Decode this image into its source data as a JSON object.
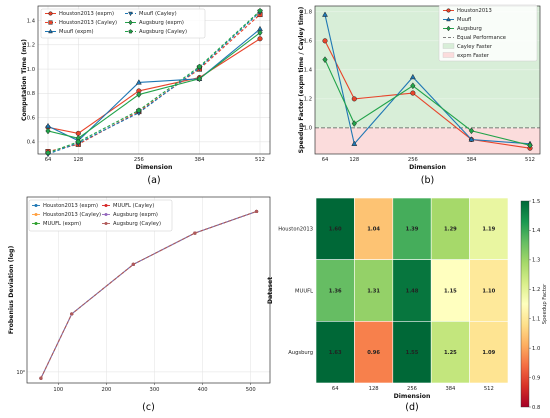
{
  "chart_data": [
    {
      "type": "line",
      "caption": "(a)",
      "x": [
        64,
        128,
        256,
        384,
        512
      ],
      "xlabel": "Dimension",
      "ylabel": "Computation Time (ms)",
      "ylim": [
        0.3,
        1.52
      ],
      "yticks": [
        0.4,
        0.6,
        0.8,
        1.0,
        1.2,
        1.4
      ],
      "grid": true,
      "legend": "top-left",
      "series": [
        {
          "name": "Houston2013 (expm)",
          "color": "#e8442b",
          "marker": "circle",
          "dash": false,
          "values": [
            0.52,
            0.47,
            0.82,
            0.93,
            1.25
          ]
        },
        {
          "name": "Houston2013 (Cayley)",
          "color": "#e8442b",
          "marker": "square",
          "dash": true,
          "values": [
            0.32,
            0.38,
            0.65,
            1.0,
            1.45
          ]
        },
        {
          "name": "Muufl (expm)",
          "color": "#1f77b4",
          "marker": "triangle",
          "dash": false,
          "values": [
            0.53,
            0.41,
            0.89,
            0.92,
            1.33
          ]
        },
        {
          "name": "Muufl (Cayley)",
          "color": "#1f77b4",
          "marker": "tri-down",
          "dash": true,
          "values": [
            0.3,
            0.39,
            0.64,
            1.01,
            1.47
          ]
        },
        {
          "name": "Augsburg (expm)",
          "color": "#22a34a",
          "marker": "diamond",
          "dash": false,
          "values": [
            0.49,
            0.43,
            0.79,
            0.92,
            1.3
          ]
        },
        {
          "name": "Augsburg (Cayley)",
          "color": "#22a34a",
          "marker": "pentagon",
          "dash": true,
          "values": [
            0.31,
            0.4,
            0.66,
            1.02,
            1.48
          ]
        }
      ]
    },
    {
      "type": "line",
      "caption": "(b)",
      "x": [
        64,
        128,
        256,
        384,
        512
      ],
      "xlabel": "Dimension",
      "ylabel": "Speedup Factor (expm time / Cayley time)",
      "ylim": [
        0.82,
        1.84
      ],
      "yticks": [
        1.0,
        1.2,
        1.4,
        1.6,
        1.8
      ],
      "grid": true,
      "legend": "top-right",
      "reference_line": {
        "y": 1.0,
        "name": "Equal Performance"
      },
      "regions": [
        {
          "name": "Cayley Faster",
          "color": "#d8eed8"
        },
        {
          "name": "expm Faster",
          "color": "#fbdcdc"
        }
      ],
      "series": [
        {
          "name": "Houston2013",
          "color": "#e8442b",
          "marker": "circle",
          "values": [
            1.6,
            1.2,
            1.24,
            0.92,
            0.86
          ]
        },
        {
          "name": "Muufl",
          "color": "#1f77b4",
          "marker": "triangle",
          "values": [
            1.78,
            0.89,
            1.35,
            0.92,
            0.89
          ]
        },
        {
          "name": "Augsburg",
          "color": "#22a34a",
          "marker": "diamond",
          "values": [
            1.47,
            1.03,
            1.29,
            0.98,
            0.88
          ]
        }
      ]
    },
    {
      "type": "line",
      "caption": "(c)",
      "x": [
        64,
        128,
        256,
        384,
        512
      ],
      "xlabel": "",
      "ylabel": "Frobenius Deviation (log)",
      "xlim": [
        35,
        540
      ],
      "xticks": [
        100,
        200,
        300,
        400,
        500
      ],
      "ylog": true,
      "ylim": [
        0.88,
        7.5
      ],
      "yticks": [
        {
          "value": 1.0,
          "label": "10⁰"
        }
      ],
      "grid": true,
      "legend": "top-left",
      "series": [
        {
          "name": "Houston2013 (expm)",
          "color": "#1f77b4",
          "values": [
            0.93,
            1.95,
            3.45,
            4.95,
            6.35
          ]
        },
        {
          "name": "Houston2013 (Cayley)",
          "color": "#ff9f40",
          "values": [
            0.93,
            1.95,
            3.45,
            4.95,
            6.35
          ]
        },
        {
          "name": "MUUFL (expm)",
          "color": "#2ca02c",
          "values": [
            0.93,
            1.95,
            3.45,
            4.95,
            6.35
          ]
        },
        {
          "name": "MUUFL (Cayley)",
          "color": "#d62728",
          "values": [
            0.93,
            1.95,
            3.45,
            4.95,
            6.35
          ]
        },
        {
          "name": "Augsburg (expm)",
          "color": "#9467bd",
          "values": [
            0.93,
            1.95,
            3.45,
            4.95,
            6.35
          ]
        },
        {
          "name": "Augsburg (Cayley)",
          "color": "#b05a5a",
          "values": [
            0.93,
            1.95,
            3.45,
            4.95,
            6.35
          ]
        }
      ]
    },
    {
      "type": "heatmap",
      "caption": "(d)",
      "xlabel": "Dimension",
      "ylabel": "Dataset",
      "colorbar_label": "Speedup Factor",
      "colorbar_range": [
        0.8,
        1.5
      ],
      "colorbar_ticks": [
        0.8,
        0.9,
        1.0,
        1.1,
        1.2,
        1.3,
        1.4,
        1.5
      ],
      "colorscale": [
        "#a50026",
        "#d73027",
        "#f46d43",
        "#fdae61",
        "#fee08b",
        "#ffffbf",
        "#d9ef8b",
        "#a6d96a",
        "#66bd63",
        "#1a9850",
        "#006837"
      ],
      "columns": [
        "64",
        "128",
        "256",
        "384",
        "512"
      ],
      "rows": [
        "Houston2013",
        "MUUFL",
        "Augsburg"
      ],
      "values": [
        [
          1.6,
          1.04,
          1.39,
          1.29,
          1.19
        ],
        [
          1.36,
          1.31,
          1.48,
          1.15,
          1.1
        ],
        [
          1.63,
          0.96,
          1.55,
          1.25,
          1.09
        ]
      ]
    }
  ]
}
